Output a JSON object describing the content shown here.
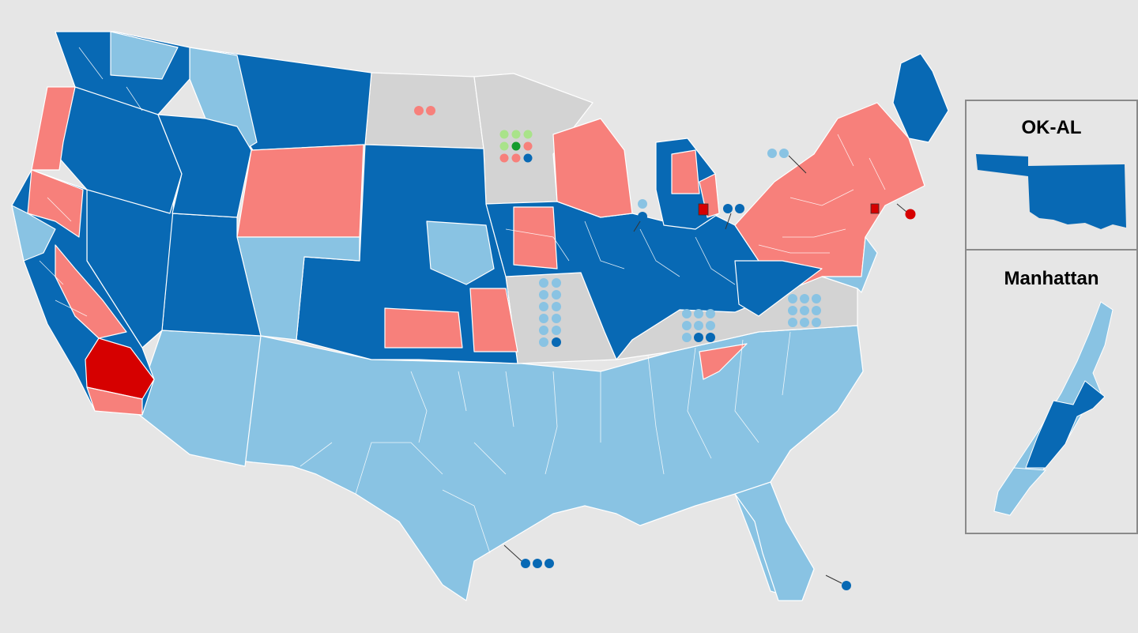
{
  "colors": {
    "background": "#e6e6e6",
    "dark_blue": "#0869b4",
    "light_blue": "#89c3e3",
    "salmon": "#f7807b",
    "red": "#d60000",
    "gray": "#d3d3d3",
    "light_green": "#a9e38a",
    "green": "#149c2e",
    "border": "#ffffff"
  },
  "insets": [
    {
      "title": "OK-AL"
    },
    {
      "title": "Manhattan"
    }
  ]
}
